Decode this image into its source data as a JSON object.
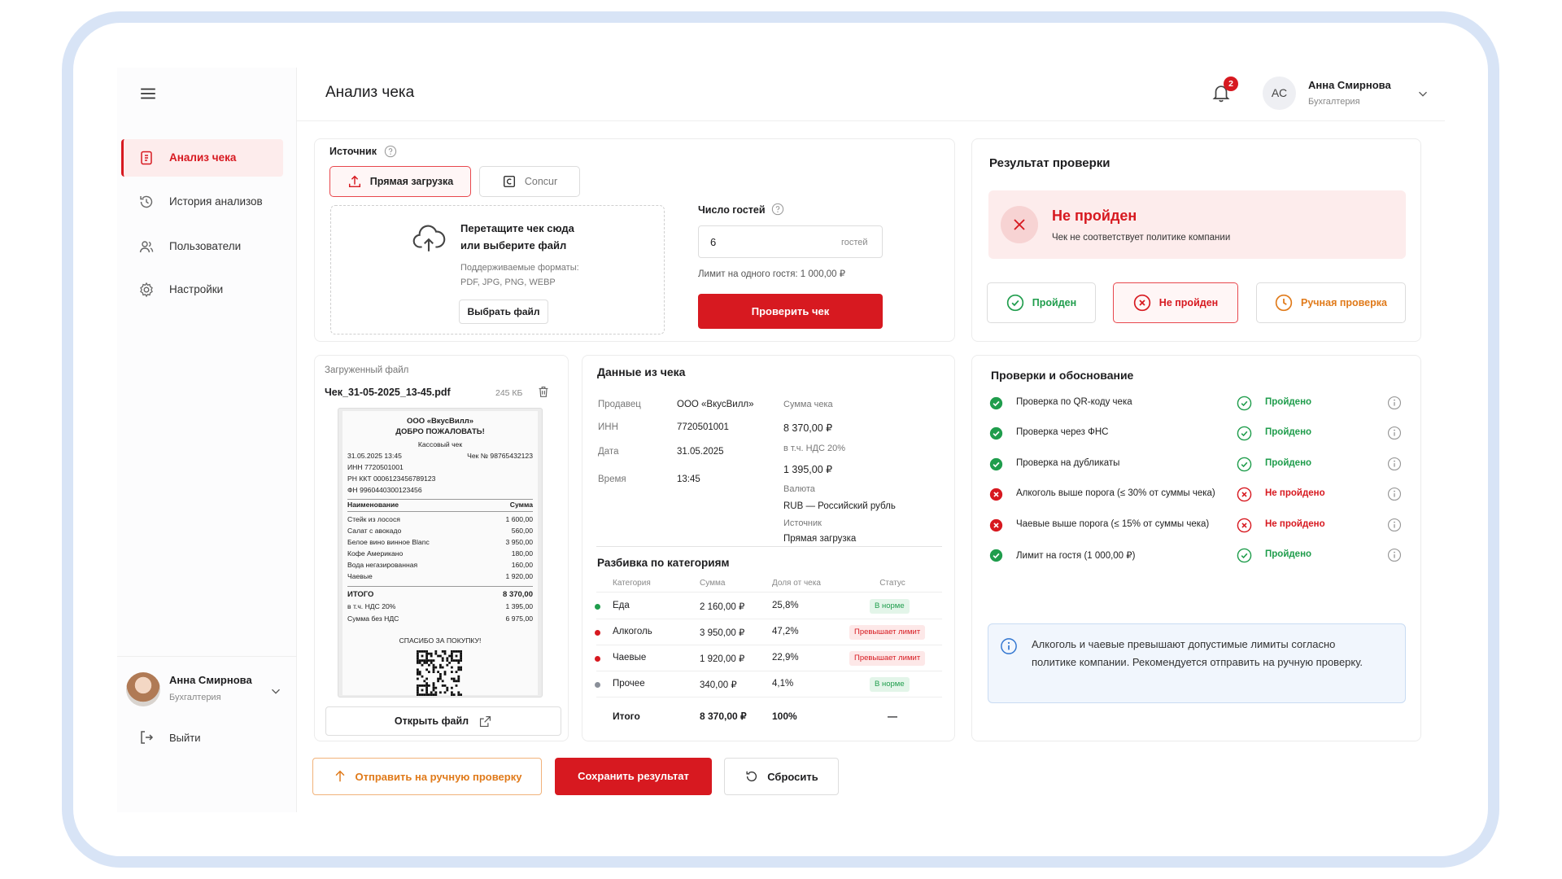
{
  "sidebar": {
    "nav": [
      "Анализ чека",
      "История анализов",
      "Пользователи",
      "Настройки"
    ],
    "user": {
      "name": "Анна Смирнова",
      "role": "Бухгалтерия"
    },
    "logout": "Выйти"
  },
  "header": {
    "title": "Анализ чека",
    "notifications": "2",
    "user": {
      "initials": "АС",
      "name": "Анна Смирнова",
      "role": "Бухгалтерия"
    }
  },
  "source": {
    "label": "Источник",
    "tabs": [
      "Прямая загрузка",
      "Concur"
    ],
    "dropzone": {
      "title": [
        "Перетащите чек сюда",
        "или выберите файл"
      ],
      "formats_label": "Поддерживаемые форматы:",
      "formats": "PDF, JPG, PNG, WEBP",
      "button": "Выбрать файл"
    },
    "guests": {
      "label": "Число гостей",
      "value": "6",
      "unit": "гостей",
      "limit": "Лимит на одного гостя: 1 000,00 ₽",
      "button": "Проверить чек"
    }
  },
  "result": {
    "title": "Результат проверки",
    "status": "Не пройден",
    "message": "Чек не соответствует политике компании",
    "options": [
      "Пройден",
      "Не пройден",
      "Ручная проверка"
    ]
  },
  "file": {
    "label": "Загруженный файл",
    "name": "Чек_31-05-2025_13-45.pdf",
    "size": "245 КБ",
    "open": "Открыть файл",
    "receipt": {
      "company": "ООО «ВкусВилл»",
      "greeting": "ДОБРО ПОЖАЛОВАТЬ!",
      "doc_type": "Кассовый чек",
      "datetime": "31.05.2025 13:45",
      "number": "Чек № 98765432123",
      "meta": [
        "ИНН 7720501001",
        "РН ККТ  0006123456789123",
        "ФН 9960440300123456"
      ],
      "columns": [
        "Наименование",
        "Сумма"
      ],
      "items": [
        [
          "Стейк из лосося",
          "1 600,00"
        ],
        [
          "Салат с авокадо",
          "560,00"
        ],
        [
          "Белое вино винное Blanc",
          "3 950,00"
        ],
        [
          "Кофе Американо",
          "180,00"
        ],
        [
          "Вода негазированная",
          "160,00"
        ],
        [
          "Чаевые",
          "1 920,00"
        ]
      ],
      "totals": [
        [
          "ИТОГО",
          "8 370,00"
        ],
        [
          "в т.ч. НДС 20%",
          "1 395,00"
        ],
        [
          "Сумма без НДС",
          "6 975,00"
        ]
      ],
      "footer": "СПАСИБО ЗА ПОКУПКУ!"
    }
  },
  "receipt_data": {
    "title": "Данные из чека",
    "fields": [
      [
        "Продавец",
        "ООО «ВкусВилл»"
      ],
      [
        "ИНН",
        "7720501001"
      ],
      [
        "Дата",
        "31.05.2025"
      ],
      [
        "Время",
        "13:45"
      ]
    ],
    "totals": [
      [
        "Сумма чека",
        "8 370,00 ₽"
      ],
      [
        "в т.ч. НДС 20%",
        "1 395,00 ₽"
      ],
      [
        "Валюта",
        "RUB — Российский рубль"
      ],
      [
        "Источник",
        "Прямая загрузка"
      ]
    ],
    "breakdown": {
      "title": "Разбивка по категориям",
      "columns": [
        "Категория",
        "Сумма",
        "Доля от чека",
        "Статус"
      ],
      "rows": [
        {
          "cells": [
            "Еда",
            "2 160,00 ₽",
            "25,8%",
            "В норме"
          ],
          "color": "#1f9d4c",
          "ok": true
        },
        {
          "cells": [
            "Алкоголь",
            "3 950,00 ₽",
            "47,2%",
            "Превышает лимит"
          ],
          "color": "#d71920",
          "ok": false
        },
        {
          "cells": [
            "Чаевые",
            "1 920,00 ₽",
            "22,9%",
            "Превышает лимит"
          ],
          "color": "#d71920",
          "ok": false
        },
        {
          "cells": [
            "Прочее",
            "340,00 ₽",
            "4,1%",
            "В норме"
          ],
          "color": "#8a8f99",
          "ok": true
        }
      ],
      "total": [
        "Итого",
        "8 370,00 ₽",
        "100%",
        "—"
      ]
    }
  },
  "checks": {
    "title": "Проверки и обоснование",
    "items": [
      {
        "name": "Проверка по QR-коду чека",
        "status": "Пройдено",
        "passed": true
      },
      {
        "name": "Проверка через ФНС",
        "status": "Пройдено",
        "passed": true
      },
      {
        "name": "Проверка на дубликаты",
        "status": "Пройдено",
        "passed": true
      },
      {
        "name": "Алкоголь выше порога (≤ 30% от суммы чека)",
        "status": "Не пройдено",
        "passed": false
      },
      {
        "name": "Чаевые выше порога (≤ 15% от суммы чека)",
        "status": "Не пройдено",
        "passed": false
      },
      {
        "name": "Лимит на гостя (1 000,00 ₽)",
        "status": "Пройдено",
        "passed": true
      }
    ],
    "note": "Алкоголь и чаевые превышают допустимые лимиты согласно политике компании. Рекомендуется отправить на ручную проверку."
  },
  "actions": [
    "Отправить на ручную проверку",
    "Сохранить результат",
    "Сбросить"
  ]
}
